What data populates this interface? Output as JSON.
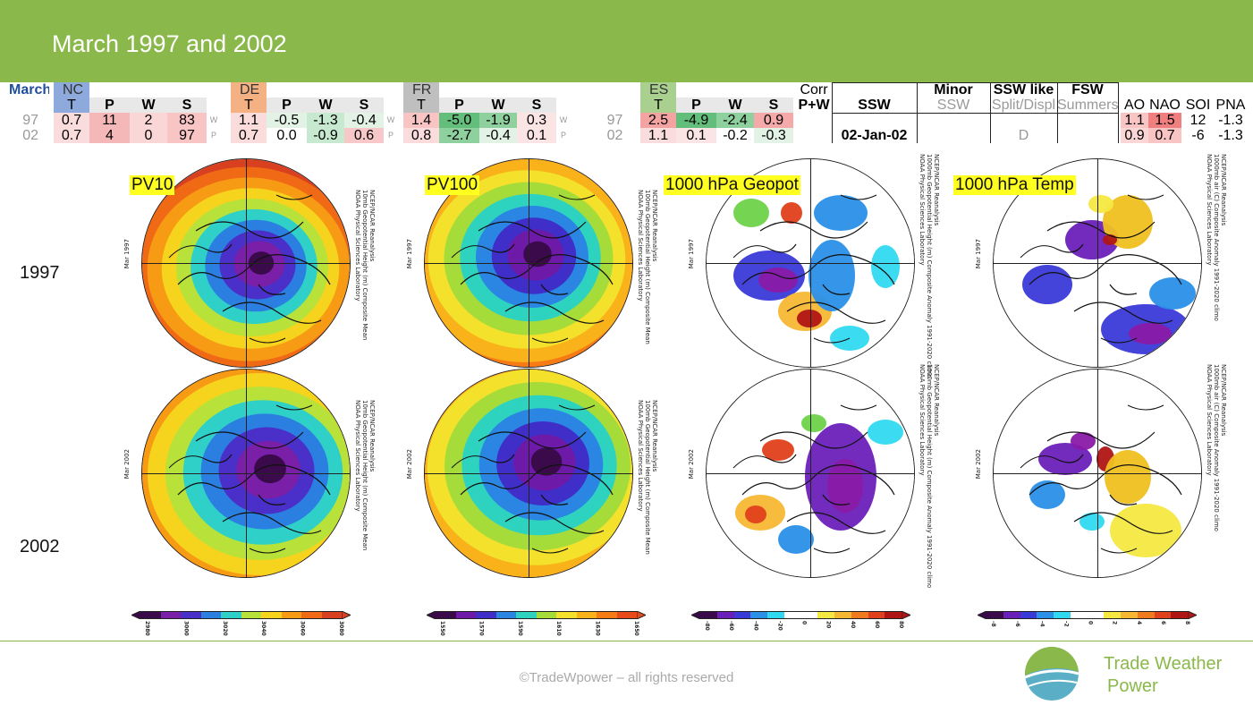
{
  "header": {
    "title": "March 1997 and 2002"
  },
  "table": {
    "month_label": "March",
    "regions": [
      {
        "code": "NC",
        "cols": [
          "T",
          "P",
          "W",
          "S"
        ],
        "rows": [
          [
            "0.7",
            "11",
            "2",
            "83"
          ],
          [
            "0.7",
            "4",
            "0",
            "97"
          ]
        ],
        "flags": [
          "W",
          "P"
        ]
      },
      {
        "code": "DE",
        "cols": [
          "T",
          "P",
          "W",
          "S"
        ],
        "rows": [
          [
            "1.1",
            "-0.5",
            "-1.3",
            "-0.4"
          ],
          [
            "0.7",
            "0.0",
            "-0.9",
            "0.6"
          ]
        ],
        "flags": [
          "W",
          "P"
        ]
      },
      {
        "code": "FR",
        "cols": [
          "T",
          "P",
          "W",
          "S"
        ],
        "rows": [
          [
            "1.4",
            "-5.0",
            "-1.9",
            "0.3"
          ],
          [
            "0.8",
            "-2.7",
            "-0.4",
            "0.1"
          ]
        ],
        "flags": [
          "W",
          "P"
        ]
      },
      {
        "code": "ES",
        "cols": [
          "T",
          "P",
          "W",
          "S"
        ],
        "rows": [
          [
            "2.5",
            "-4.9",
            "-2.4",
            "0.9"
          ],
          [
            "1.1",
            "0.1",
            "-0.2",
            "-0.3"
          ]
        ]
      }
    ],
    "years": [
      "97",
      "02"
    ],
    "corr_label": "Corr",
    "pw_label": "P+W",
    "ssw_header": "SSW",
    "ssw_values": [
      "",
      "02-Jan-02"
    ],
    "minor_header": "Minor",
    "minor_sub": "SSW",
    "sswlike_header": "SSW like",
    "sswlike_sub": "Split/Displ",
    "sswlike_values": [
      "",
      "D"
    ],
    "fsw_header": "FSW",
    "fsw_sub": "Summers",
    "indices": {
      "cols": [
        "AO",
        "NAO",
        "SOI",
        "PNA"
      ],
      "rows": [
        [
          "1.1",
          "1.5",
          "12",
          "-1.3"
        ],
        [
          "0.9",
          "0.7",
          "-6",
          "-1.3"
        ]
      ]
    }
  },
  "row_labels": [
    "1997",
    "2002"
  ],
  "maps": [
    {
      "label": "PV10",
      "side_text": [
        "NCEP/NCAR Reanalysis",
        "10mb Geopotential Height (m) Composite Mean",
        "NOAA Physical Sciences Laboratory"
      ]
    },
    {
      "label": "PV100",
      "side_text": [
        "NCEP/NCAR Reanalysis",
        "100mb Geopotential Height (m) Composite Mean",
        "NOAA Physical Sciences Laboratory"
      ]
    },
    {
      "label": "1000 hPa Geopot",
      "side_text": [
        "NCEP/NCAR Reanalysis",
        "1000mb Geopotential Height (m) Composite Anomaly 1991-2020 climo",
        "NOAA Physical Sciences Laboratory"
      ]
    },
    {
      "label": "1000 hPa Temp",
      "side_text": [
        "NCEP/NCAR Reanalysis",
        "1000mb air (C) Composite Anomaly 1991-2020 climo",
        "NOAA Physical Sciences Laboratory"
      ]
    }
  ],
  "map_years": [
    "Mar 1997",
    "Mar 2002"
  ],
  "colorbars": [
    {
      "ticks": [
        "2980",
        "3000",
        "3020",
        "3040",
        "3060",
        "3080"
      ]
    },
    {
      "ticks": [
        "1550",
        "1570",
        "1590",
        "1610",
        "1630",
        "1650"
      ]
    },
    {
      "ticks": [
        "-80",
        "-60",
        "-40",
        "-20",
        "0",
        "20",
        "40",
        "60",
        "80"
      ]
    },
    {
      "ticks": [
        "-8",
        "-6",
        "-4",
        "-2",
        "0",
        "2",
        "4",
        "6",
        "8"
      ]
    }
  ],
  "footer": {
    "copyright": "©TradeWpower – all rights reserved",
    "brand_line1": "Trade Weather",
    "brand_line2": "Power"
  },
  "colors": {
    "banner": "#8ab84a",
    "nc": "#8ea9db",
    "de": "#f4b183",
    "fr": "#bfbfbf",
    "es": "#a9d08e",
    "brand": "#8ab84a"
  }
}
